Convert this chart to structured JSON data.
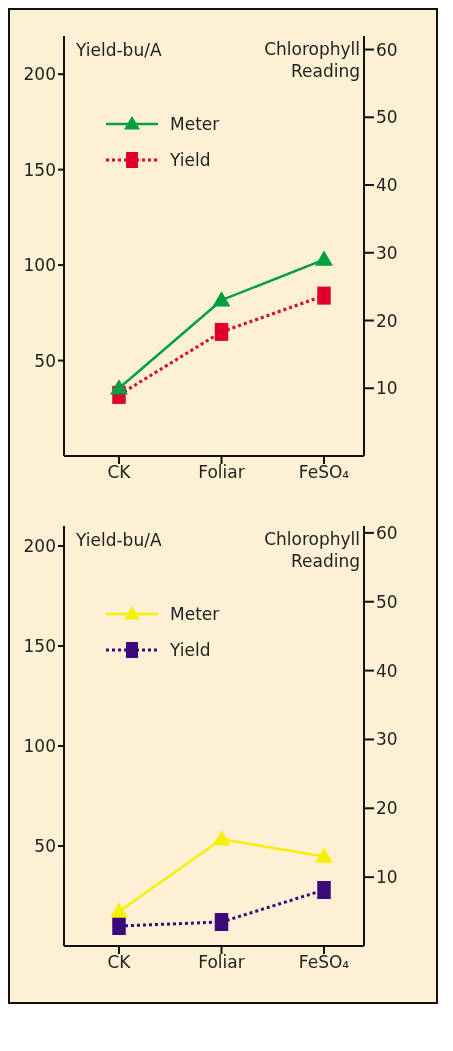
{
  "chart_data": [
    {
      "type": "line",
      "categories": [
        "CK",
        "Foliar",
        "FeSO₄"
      ],
      "ylabel": "Yield-bu/A",
      "y2label": "Chlorophyll\nReading",
      "ylim": [
        0,
        220
      ],
      "yticks": [
        50,
        100,
        150,
        200
      ],
      "y2lim": [
        0,
        62
      ],
      "y2ticks": [
        10,
        20,
        30,
        40,
        50,
        60
      ],
      "legend": "top left",
      "grid": false,
      "series": [
        {
          "name": "Meter",
          "color": "#00a040",
          "values": [
            10,
            23,
            29
          ],
          "axis": "y2",
          "marker": "triangle",
          "line_style": "solid"
        },
        {
          "name": "Yield",
          "color": "#e0002a",
          "values": [
            32,
            65,
            84
          ],
          "marker": "square",
          "line_style": "dotted"
        }
      ]
    },
    {
      "type": "line",
      "categories": [
        "CK",
        "Foliar",
        "FeSO₄"
      ],
      "ylabel": "Yield-bu/A",
      "y2label": "Chlorophyll\nReading",
      "ylim": [
        0,
        210
      ],
      "yticks": [
        50,
        100,
        150,
        200
      ],
      "y2lim": [
        0,
        61
      ],
      "y2ticks": [
        10,
        20,
        30,
        40,
        50,
        60
      ],
      "legend": "top left",
      "grid": false,
      "series": [
        {
          "name": "Meter",
          "color": "#f5f000",
          "values": [
            5,
            15.5,
            13
          ],
          "axis": "y2",
          "marker": "triangle",
          "line_style": "solid"
        },
        {
          "name": "Yield",
          "color": "#3a0a7a",
          "values": [
            10,
            12,
            28
          ],
          "marker": "square",
          "line_style": "dotted"
        }
      ]
    }
  ]
}
